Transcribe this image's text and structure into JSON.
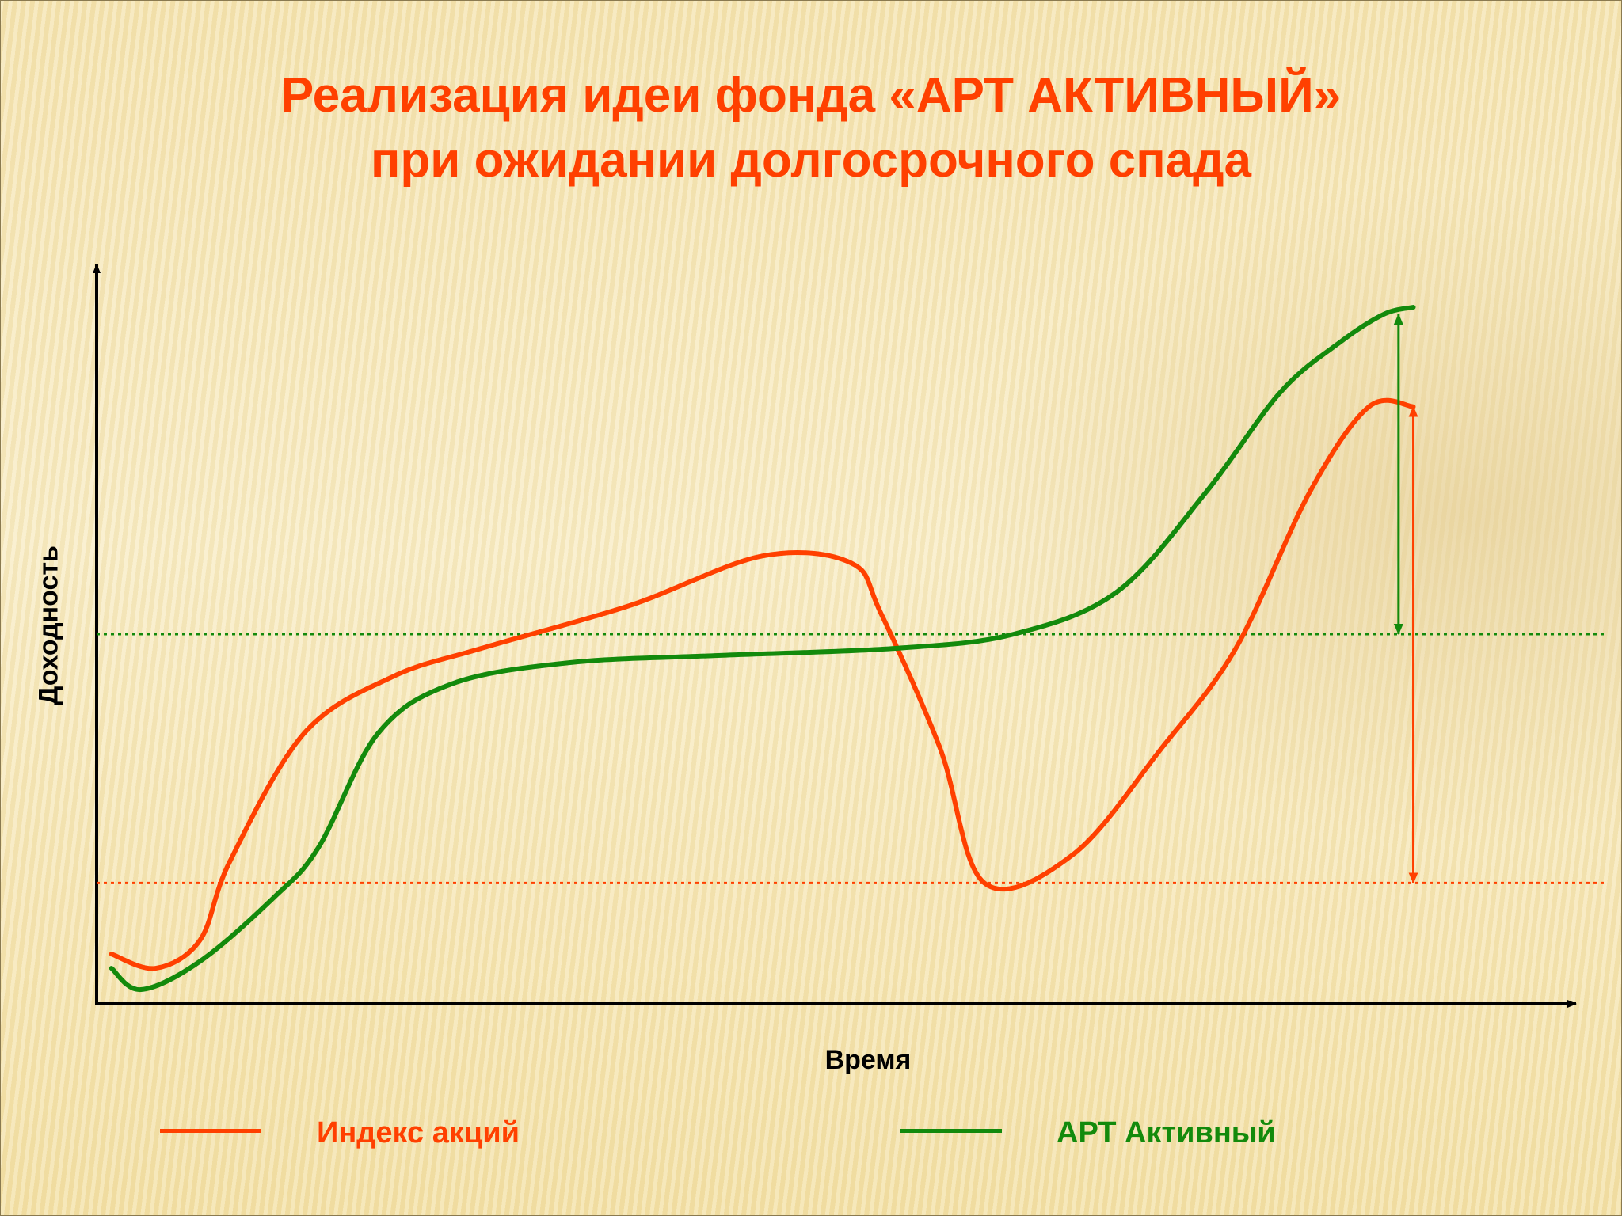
{
  "title": {
    "line1": "Реализация идеи фонда «АРТ АКТИВНЫЙ»",
    "line2": "при ожидании долгосрочного спада"
  },
  "chart_data": {
    "type": "line",
    "xlabel": "Время",
    "ylabel": "Доходность",
    "xlim": [
      0,
      100
    ],
    "ylim": [
      0,
      100
    ],
    "grid": false,
    "legend": "bottom",
    "series": [
      {
        "name": "Индекс акций",
        "color": "#ff4000",
        "x": [
          1,
          4,
          7,
          9,
          14,
          20,
          26,
          36,
          45,
          51,
          53,
          57,
          60,
          66,
          72,
          77,
          82,
          86,
          89
        ],
        "y": [
          7,
          5,
          9,
          20,
          38,
          46,
          50,
          56,
          63,
          62,
          55,
          36,
          17,
          21,
          36,
          50,
          72,
          84,
          84
        ]
      },
      {
        "name": "АРТ Активный",
        "color": "#138a0c",
        "x": [
          1,
          3,
          7,
          12,
          15,
          19,
          24,
          32,
          42,
          54,
          62,
          69,
          75,
          80,
          84,
          87,
          89
        ],
        "y": [
          5,
          2,
          6,
          15,
          22,
          38,
          45,
          48,
          49,
          50,
          52,
          58,
          72,
          86,
          93,
          97,
          98
        ]
      }
    ],
    "reference_lines": [
      {
        "series": "Индекс акций",
        "y": 17,
        "style": "dotted"
      },
      {
        "series": "АРТ Активный",
        "y": 52,
        "style": "dotted"
      }
    ],
    "annotations": [
      {
        "type": "double-arrow",
        "series": "АРТ Активный",
        "x": 88,
        "from": 52,
        "to": 97
      },
      {
        "type": "double-arrow",
        "series": "Индекс акций",
        "x": 89,
        "from": 17,
        "to": 84
      }
    ]
  },
  "legend": {
    "items": [
      {
        "label": "Индекс акций",
        "color": "#ff4000"
      },
      {
        "label": "АРТ Активный",
        "color": "#138a0c"
      }
    ]
  }
}
